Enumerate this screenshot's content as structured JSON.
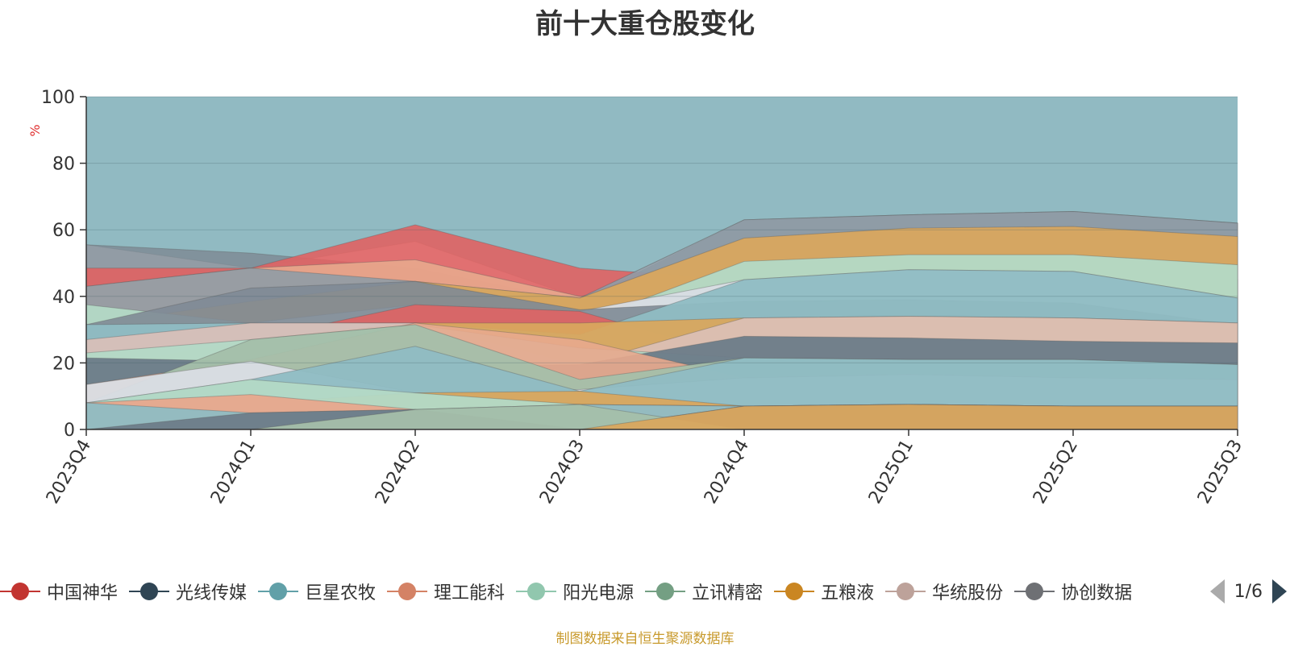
{
  "title": "前十大重仓股变化",
  "source_note": "制图数据来自恒生聚源数据库",
  "legend_page": "1/6",
  "chart_data": {
    "type": "area",
    "title": "前十大重仓股变化",
    "xlabel": "",
    "ylabel": "%",
    "ylim": [
      0,
      100
    ],
    "yticks": [
      0,
      20,
      40,
      60,
      80,
      100
    ],
    "categories": [
      "2023Q4",
      "2024Q1",
      "2024Q2",
      "2024Q3",
      "2024Q4",
      "2025Q1",
      "2025Q2",
      "2025Q3"
    ],
    "stack_tops": [
      {
        "color": "#f2f2f6",
        "opacity": 0.85,
        "values": [
          55.5,
          48.5,
          56.5,
          39.5,
          63,
          64.5,
          65.5,
          62
        ]
      },
      {
        "color": "#7d8892",
        "opacity": 0.8,
        "values": [
          55.5,
          53,
          48.5,
          38.5,
          63,
          64.5,
          65.5,
          62
        ]
      },
      {
        "color": "#e06363",
        "opacity": 0.9,
        "values": [
          48.5,
          48.5,
          61.5,
          48.5,
          45,
          48,
          47.5,
          45
        ]
      },
      {
        "color": "#e8a88d",
        "opacity": 0.9,
        "values": [
          43,
          48.5,
          51,
          40,
          45,
          48,
          47.5,
          45
        ]
      },
      {
        "color": "#8f9ca6",
        "opacity": 0.9,
        "values": [
          43,
          48.5,
          44.5,
          39.5,
          63,
          64.5,
          65.5,
          62
        ]
      },
      {
        "color": "#d9a65e",
        "opacity": 0.95,
        "values": [
          31.5,
          38.5,
          44.5,
          39.5,
          57.5,
          60.5,
          61,
          58
        ]
      },
      {
        "color": "#b3d9c6",
        "opacity": 0.95,
        "values": [
          37.5,
          32,
          37.5,
          32,
          50.5,
          52.5,
          52.5,
          49.5
        ]
      },
      {
        "color": "#d9dde4",
        "opacity": 0.95,
        "values": [
          31.5,
          32,
          37.5,
          35.5,
          45,
          48,
          47.5,
          39.5
        ]
      },
      {
        "color": "#7f8b96",
        "opacity": 0.9,
        "values": [
          31.5,
          42.5,
          44.5,
          36,
          38.5,
          39,
          38,
          31.5
        ]
      },
      {
        "color": "#e06363",
        "opacity": 0.9,
        "values": [
          23,
          27,
          37.5,
          35.5,
          21.5,
          21,
          21,
          19.5
        ]
      },
      {
        "color": "#8fbcc3",
        "opacity": 0.95,
        "values": [
          31.5,
          32,
          32,
          28.5,
          45,
          48,
          47.5,
          39.5
        ]
      },
      {
        "color": "#d9a65e",
        "opacity": 0.95,
        "values": [
          18,
          27,
          32,
          32,
          33.5,
          34,
          33.5,
          32
        ]
      },
      {
        "color": "#dcc0b8",
        "opacity": 0.9,
        "values": [
          27,
          32,
          32,
          19.5,
          33.5,
          34,
          33.5,
          32
        ]
      },
      {
        "color": "#b3d9c6",
        "opacity": 0.95,
        "values": [
          23,
          27,
          31.5,
          24.5,
          21.5,
          21,
          21,
          19.5
        ]
      },
      {
        "color": "#6d7c89",
        "opacity": 0.95,
        "values": [
          21.5,
          20.5,
          19,
          19.5,
          28,
          27.5,
          26.5,
          26
        ]
      },
      {
        "color": "#e8a88d",
        "opacity": 0.9,
        "values": [
          13.5,
          21,
          32,
          27,
          15.5,
          16.5,
          15.5,
          15
        ]
      },
      {
        "color": "#a4bfaa",
        "opacity": 0.95,
        "values": [
          8,
          27,
          31.5,
          15,
          21.5,
          21,
          21,
          19.5
        ]
      },
      {
        "color": "#d9dde4",
        "opacity": 0.95,
        "values": [
          13.5,
          20.5,
          11,
          12,
          15.5,
          16.5,
          15.5,
          15
        ]
      },
      {
        "color": "#8fbcc3",
        "opacity": 0.95,
        "values": [
          8,
          15,
          25,
          11.5,
          21.5,
          21,
          21,
          19.5
        ]
      },
      {
        "color": "#d9a65e",
        "opacity": 0.95,
        "values": [
          8,
          8,
          11,
          11.5,
          7,
          7.5,
          7,
          7
        ]
      },
      {
        "color": "#b3d9c6",
        "opacity": 0.95,
        "values": [
          8,
          15,
          11,
          7.5,
          7,
          7.5,
          7,
          7
        ]
      },
      {
        "color": "#e8a88d",
        "opacity": 0.95,
        "values": [
          8,
          10.5,
          6,
          7.5,
          7,
          7.5,
          7,
          7
        ]
      },
      {
        "color": "#8fbcc3",
        "opacity": 0.95,
        "values": [
          8,
          5,
          6,
          7.5,
          7,
          7.5,
          7,
          7
        ]
      },
      {
        "color": "#e06363",
        "opacity": 0.95,
        "values": [
          0,
          0,
          6,
          0,
          7,
          7.5,
          7,
          7
        ]
      },
      {
        "color": "#6d7c89",
        "opacity": 0.95,
        "values": [
          0,
          5,
          6,
          0,
          7,
          7.5,
          7,
          7
        ]
      },
      {
        "color": "#a4bfaa",
        "opacity": 0.95,
        "values": [
          0,
          0,
          6,
          7.5,
          0,
          0,
          0,
          0
        ]
      },
      {
        "color": "#d9a65e",
        "opacity": 0.95,
        "values": [
          0,
          0,
          0,
          0,
          7,
          7.5,
          7,
          7
        ]
      }
    ],
    "background_series_color": "#91bac2",
    "legend": [
      {
        "name": "中国神华",
        "color": "#c23531"
      },
      {
        "name": "光线传媒",
        "color": "#2f4554"
      },
      {
        "name": "巨星农牧",
        "color": "#61a0a8"
      },
      {
        "name": "理工能科",
        "color": "#d48265"
      },
      {
        "name": "阳光电源",
        "color": "#91c7ae"
      },
      {
        "name": "立讯精密",
        "color": "#749f83"
      },
      {
        "name": "五粮液",
        "color": "#ca8622"
      },
      {
        "name": "华统股份",
        "color": "#bda29a"
      },
      {
        "name": "协创数据",
        "color": "#6e7074"
      }
    ]
  }
}
